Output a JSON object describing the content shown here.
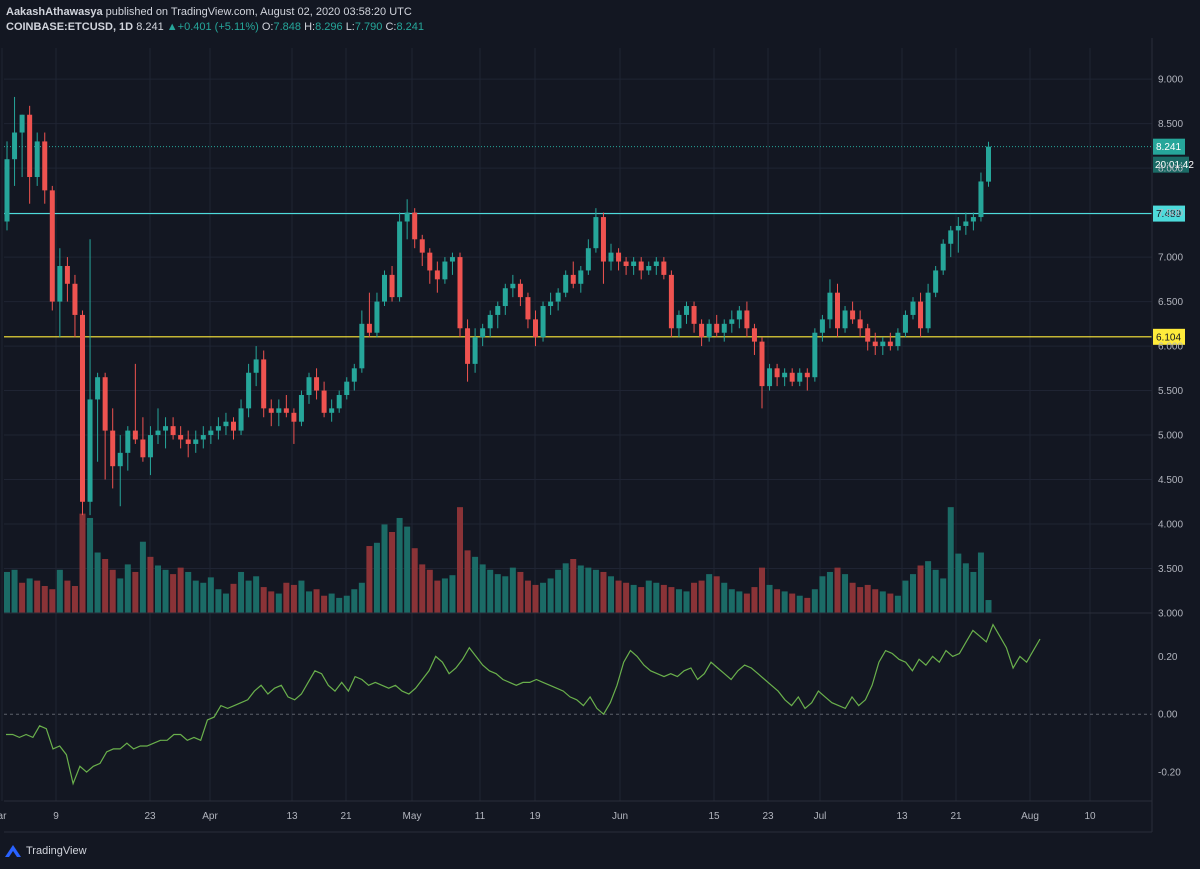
{
  "header": {
    "published_line_author": "AakashAthawasya",
    "published_line_rest": " published on TradingView.com, August 02, 2020 03:58:20 UTC",
    "symbol": "COINBASE:ETCUSD, 1D",
    "last": "8.241",
    "change_arrow": "▲",
    "change": "+0.401 (+5.11%)",
    "o_label": "O:",
    "o_value": "7.848",
    "h_label": "H:",
    "h_value": "8.296",
    "l_label": "L:",
    "l_value": "7.790",
    "c_label": "C:",
    "c_value": "8.241"
  },
  "footer": {
    "brand": "TradingView"
  },
  "colors": {
    "background": "#131722",
    "up": "#26a69a",
    "down": "#ef5350",
    "vol_up": "#1b6b66",
    "vol_down": "#8a3337",
    "grid": "#1f2433",
    "support": "#ffeb3b",
    "resistance": "#4ddbdb",
    "oscillator": "#6ab04c",
    "axis_text": "#b2b5be"
  },
  "chart_data": [
    {
      "type": "candlestick",
      "symbol": "COINBASE:ETCUSD",
      "interval": "1D",
      "y_axis_side": "right",
      "ylim": [
        3.0,
        9.35
      ],
      "yticks": [
        "9.000",
        "8.500",
        "8.000",
        "7.500",
        "7.000",
        "6.500",
        "6.000",
        "5.500",
        "5.000",
        "4.500",
        "4.000",
        "3.500",
        "3.000"
      ],
      "xticks": [
        "ar",
        "9",
        "23",
        "Apr",
        "13",
        "21",
        "May",
        "11",
        "19",
        "Jun",
        "15",
        "23",
        "Jul",
        "13",
        "21",
        "Aug",
        "10"
      ],
      "horizontal_lines": [
        {
          "value": 7.489,
          "label": "7.489",
          "style": "resistance"
        },
        {
          "value": 6.104,
          "label": "6.104",
          "style": "support"
        }
      ],
      "last_price": {
        "value": 8.241,
        "label": "8.241",
        "countdown": "20:01:42"
      },
      "candles_ohlc": [
        [
          7.4,
          8.3,
          7.3,
          8.1
        ],
        [
          8.1,
          8.8,
          7.8,
          8.4
        ],
        [
          8.4,
          8.6,
          7.9,
          8.6
        ],
        [
          8.6,
          8.7,
          7.6,
          7.9
        ],
        [
          7.9,
          8.4,
          7.8,
          8.3
        ],
        [
          8.3,
          8.4,
          7.6,
          7.75
        ],
        [
          7.75,
          7.8,
          6.4,
          6.5
        ],
        [
          6.5,
          7.1,
          6.1,
          6.9
        ],
        [
          6.9,
          7.0,
          6.5,
          6.7
        ],
        [
          6.7,
          6.8,
          6.1,
          6.35
        ],
        [
          6.35,
          6.4,
          4.1,
          4.25
        ],
        [
          4.25,
          7.2,
          4.1,
          5.4
        ],
        [
          5.4,
          5.7,
          4.7,
          5.65
        ],
        [
          5.65,
          5.7,
          4.5,
          5.05
        ],
        [
          5.05,
          5.3,
          4.4,
          4.65
        ],
        [
          4.65,
          5.0,
          4.2,
          4.8
        ],
        [
          4.8,
          5.1,
          4.6,
          5.05
        ],
        [
          5.05,
          5.8,
          4.9,
          4.95
        ],
        [
          4.95,
          5.2,
          4.7,
          4.75
        ],
        [
          4.75,
          5.1,
          4.55,
          5.0
        ],
        [
          5.0,
          5.3,
          4.9,
          5.05
        ],
        [
          5.05,
          5.2,
          4.85,
          5.1
        ],
        [
          5.1,
          5.2,
          4.95,
          5.0
        ],
        [
          5.0,
          5.1,
          4.85,
          4.95
        ],
        [
          4.95,
          5.05,
          4.75,
          4.9
        ],
        [
          4.9,
          5.05,
          4.8,
          4.95
        ],
        [
          4.95,
          5.1,
          4.85,
          5.0
        ],
        [
          5.0,
          5.1,
          4.9,
          5.05
        ],
        [
          5.05,
          5.2,
          4.95,
          5.1
        ],
        [
          5.1,
          5.25,
          5.0,
          5.15
        ],
        [
          5.15,
          5.2,
          4.95,
          5.05
        ],
        [
          5.05,
          5.4,
          5.0,
          5.3
        ],
        [
          5.3,
          5.8,
          5.2,
          5.7
        ],
        [
          5.7,
          6.0,
          5.55,
          5.85
        ],
        [
          5.85,
          5.95,
          5.2,
          5.3
        ],
        [
          5.3,
          5.4,
          5.1,
          5.25
        ],
        [
          5.25,
          5.4,
          5.1,
          5.3
        ],
        [
          5.3,
          5.45,
          5.2,
          5.25
        ],
        [
          5.25,
          5.3,
          4.9,
          5.15
        ],
        [
          5.15,
          5.5,
          5.1,
          5.45
        ],
        [
          5.45,
          5.7,
          5.35,
          5.65
        ],
        [
          5.65,
          5.75,
          5.4,
          5.5
        ],
        [
          5.5,
          5.6,
          5.2,
          5.25
        ],
        [
          5.25,
          5.4,
          5.15,
          5.3
        ],
        [
          5.3,
          5.5,
          5.25,
          5.45
        ],
        [
          5.45,
          5.65,
          5.4,
          5.6
        ],
        [
          5.6,
          5.8,
          5.5,
          5.75
        ],
        [
          5.75,
          6.4,
          5.7,
          6.25
        ],
        [
          6.25,
          6.6,
          6.1,
          6.15
        ],
        [
          6.15,
          6.6,
          6.1,
          6.5
        ],
        [
          6.5,
          6.85,
          6.45,
          6.8
        ],
        [
          6.8,
          6.9,
          6.5,
          6.55
        ],
        [
          6.55,
          7.5,
          6.5,
          7.4
        ],
        [
          7.4,
          7.65,
          7.2,
          7.5
        ],
        [
          7.5,
          7.55,
          7.1,
          7.2
        ],
        [
          7.2,
          7.25,
          6.9,
          7.05
        ],
        [
          7.05,
          7.1,
          6.7,
          6.85
        ],
        [
          6.85,
          6.95,
          6.6,
          6.75
        ],
        [
          6.75,
          7.0,
          6.7,
          6.95
        ],
        [
          6.95,
          7.05,
          6.8,
          7.0
        ],
        [
          7.0,
          7.05,
          6.1,
          6.2
        ],
        [
          6.2,
          6.3,
          5.6,
          5.8
        ],
        [
          5.8,
          6.2,
          5.7,
          6.1
        ],
        [
          6.1,
          6.25,
          6.0,
          6.2
        ],
        [
          6.2,
          6.4,
          6.1,
          6.35
        ],
        [
          6.35,
          6.5,
          6.2,
          6.45
        ],
        [
          6.45,
          6.7,
          6.35,
          6.65
        ],
        [
          6.65,
          6.8,
          6.55,
          6.7
        ],
        [
          6.7,
          6.75,
          6.45,
          6.55
        ],
        [
          6.55,
          6.6,
          6.2,
          6.3
        ],
        [
          6.3,
          6.4,
          6.0,
          6.1
        ],
        [
          6.1,
          6.5,
          6.05,
          6.45
        ],
        [
          6.45,
          6.6,
          6.35,
          6.5
        ],
        [
          6.5,
          6.65,
          6.4,
          6.6
        ],
        [
          6.6,
          6.85,
          6.55,
          6.8
        ],
        [
          6.8,
          6.95,
          6.65,
          6.7
        ],
        [
          6.7,
          6.9,
          6.6,
          6.85
        ],
        [
          6.85,
          7.2,
          6.8,
          7.1
        ],
        [
          7.1,
          7.55,
          7.05,
          7.45
        ],
        [
          7.45,
          7.5,
          6.7,
          6.95
        ],
        [
          6.95,
          7.15,
          6.85,
          7.05
        ],
        [
          7.05,
          7.1,
          6.85,
          6.95
        ],
        [
          6.95,
          7.0,
          6.8,
          6.9
        ],
        [
          6.9,
          7.0,
          6.8,
          6.95
        ],
        [
          6.95,
          7.0,
          6.75,
          6.85
        ],
        [
          6.85,
          6.95,
          6.8,
          6.9
        ],
        [
          6.9,
          7.0,
          6.8,
          6.95
        ],
        [
          6.95,
          7.0,
          6.75,
          6.8
        ],
        [
          6.8,
          6.85,
          6.1,
          6.2
        ],
        [
          6.2,
          6.4,
          6.1,
          6.35
        ],
        [
          6.35,
          6.5,
          6.25,
          6.45
        ],
        [
          6.45,
          6.5,
          6.15,
          6.25
        ],
        [
          6.25,
          6.3,
          6.0,
          6.1
        ],
        [
          6.1,
          6.3,
          6.05,
          6.25
        ],
        [
          6.25,
          6.35,
          6.1,
          6.15
        ],
        [
          6.15,
          6.3,
          6.05,
          6.25
        ],
        [
          6.25,
          6.4,
          6.15,
          6.3
        ],
        [
          6.3,
          6.45,
          6.2,
          6.4
        ],
        [
          6.4,
          6.5,
          6.1,
          6.2
        ],
        [
          6.2,
          6.25,
          5.9,
          6.05
        ],
        [
          6.05,
          6.1,
          5.3,
          5.55
        ],
        [
          5.55,
          5.8,
          5.5,
          5.75
        ],
        [
          5.75,
          5.8,
          5.55,
          5.65
        ],
        [
          5.65,
          5.75,
          5.55,
          5.7
        ],
        [
          5.7,
          5.75,
          5.55,
          5.6
        ],
        [
          5.6,
          5.75,
          5.55,
          5.7
        ],
        [
          5.7,
          5.75,
          5.5,
          5.65
        ],
        [
          5.65,
          6.2,
          5.6,
          6.15
        ],
        [
          6.15,
          6.35,
          6.05,
          6.3
        ],
        [
          6.3,
          6.75,
          6.2,
          6.6
        ],
        [
          6.6,
          6.7,
          6.1,
          6.2
        ],
        [
          6.2,
          6.45,
          6.15,
          6.4
        ],
        [
          6.4,
          6.5,
          6.25,
          6.3
        ],
        [
          6.3,
          6.4,
          6.1,
          6.2
        ],
        [
          6.2,
          6.25,
          5.95,
          6.05
        ],
        [
          6.05,
          6.15,
          5.9,
          6.0
        ],
        [
          6.0,
          6.1,
          5.9,
          6.05
        ],
        [
          6.05,
          6.15,
          5.95,
          6.0
        ],
        [
          6.0,
          6.2,
          5.95,
          6.15
        ],
        [
          6.15,
          6.4,
          6.1,
          6.35
        ],
        [
          6.35,
          6.55,
          6.3,
          6.5
        ],
        [
          6.5,
          6.6,
          6.1,
          6.2
        ],
        [
          6.2,
          6.7,
          6.15,
          6.6
        ],
        [
          6.6,
          6.9,
          6.55,
          6.85
        ],
        [
          6.85,
          7.2,
          6.8,
          7.15
        ],
        [
          7.15,
          7.35,
          7.0,
          7.3
        ],
        [
          7.3,
          7.45,
          7.05,
          7.35
        ],
        [
          7.35,
          7.5,
          7.25,
          7.4
        ],
        [
          7.4,
          7.5,
          7.3,
          7.45
        ],
        [
          7.45,
          7.95,
          7.4,
          7.85
        ],
        [
          7.848,
          8.296,
          7.79,
          8.241
        ]
      ],
      "volume_ylim": [
        0,
        100
      ],
      "volume": [
        38,
        40,
        28,
        32,
        30,
        25,
        22,
        40,
        30,
        25,
        92,
        88,
        56,
        50,
        40,
        32,
        45,
        38,
        66,
        52,
        44,
        40,
        36,
        42,
        38,
        30,
        28,
        33,
        22,
        18,
        27,
        38,
        30,
        34,
        24,
        20,
        18,
        28,
        26,
        30,
        20,
        22,
        16,
        18,
        14,
        16,
        22,
        28,
        62,
        65,
        82,
        75,
        88,
        80,
        60,
        45,
        40,
        30,
        32,
        35,
        98,
        58,
        52,
        45,
        40,
        36,
        34,
        42,
        38,
        30,
        26,
        28,
        32,
        40,
        46,
        50,
        44,
        42,
        40,
        38,
        34,
        30,
        28,
        26,
        24,
        30,
        28,
        26,
        24,
        22,
        20,
        28,
        30,
        36,
        34,
        28,
        22,
        20,
        18,
        24,
        42,
        26,
        22,
        20,
        18,
        16,
        14,
        22,
        34,
        38,
        42,
        36,
        28,
        24,
        26,
        22,
        20,
        18,
        16,
        30,
        36,
        44,
        48,
        40,
        32,
        98,
        55,
        46,
        38,
        56,
        12
      ],
      "volume_direction": [
        "u",
        "u",
        "d",
        "u",
        "d",
        "d",
        "d",
        "u",
        "d",
        "d",
        "d",
        "u",
        "u",
        "d",
        "d",
        "u",
        "u",
        "d",
        "u",
        "d",
        "u",
        "u",
        "d",
        "d",
        "u",
        "u",
        "u",
        "u",
        "u",
        "u",
        "d",
        "u",
        "u",
        "u",
        "d",
        "d",
        "u",
        "d",
        "d",
        "u",
        "u",
        "d",
        "d",
        "u",
        "u",
        "u",
        "u",
        "u",
        "d",
        "u",
        "u",
        "d",
        "u",
        "u",
        "d",
        "d",
        "d",
        "d",
        "u",
        "u",
        "d",
        "d",
        "u",
        "u",
        "u",
        "u",
        "u",
        "u",
        "d",
        "d",
        "d",
        "u",
        "u",
        "u",
        "u",
        "d",
        "u",
        "u",
        "u",
        "d",
        "u",
        "d",
        "d",
        "u",
        "d",
        "u",
        "u",
        "d",
        "d",
        "u",
        "u",
        "d",
        "d",
        "u",
        "d",
        "u",
        "u",
        "u",
        "d",
        "d",
        "d",
        "u",
        "d",
        "u",
        "d",
        "u",
        "d",
        "u",
        "u",
        "u",
        "d",
        "u",
        "d",
        "d",
        "d",
        "d",
        "u",
        "d",
        "u",
        "u",
        "u",
        "d",
        "u",
        "u",
        "u",
        "u",
        "u",
        "u",
        "u",
        "u",
        "u"
      ]
    },
    {
      "type": "line",
      "name": "oscillator",
      "ylim": [
        -0.3,
        0.35
      ],
      "yticks": [
        "0.20",
        "0.00",
        "-0.20"
      ],
      "zero_line": true,
      "values": [
        -0.07,
        -0.07,
        -0.08,
        -0.07,
        -0.08,
        -0.04,
        -0.05,
        -0.12,
        -0.11,
        -0.14,
        -0.24,
        -0.18,
        -0.2,
        -0.18,
        -0.17,
        -0.13,
        -0.12,
        -0.12,
        -0.1,
        -0.12,
        -0.11,
        -0.11,
        -0.1,
        -0.09,
        -0.09,
        -0.07,
        -0.07,
        -0.09,
        -0.08,
        -0.09,
        -0.02,
        -0.01,
        0.03,
        0.02,
        0.03,
        0.04,
        0.05,
        0.08,
        0.1,
        0.07,
        0.09,
        0.1,
        0.06,
        0.05,
        0.07,
        0.11,
        0.15,
        0.14,
        0.1,
        0.08,
        0.11,
        0.08,
        0.13,
        0.12,
        0.1,
        0.11,
        0.1,
        0.09,
        0.1,
        0.08,
        0.07,
        0.09,
        0.12,
        0.15,
        0.2,
        0.18,
        0.14,
        0.16,
        0.19,
        0.23,
        0.2,
        0.17,
        0.15,
        0.14,
        0.12,
        0.11,
        0.1,
        0.11,
        0.11,
        0.12,
        0.11,
        0.1,
        0.09,
        0.08,
        0.06,
        0.05,
        0.03,
        0.06,
        0.02,
        0.0,
        0.04,
        0.1,
        0.18,
        0.22,
        0.2,
        0.17,
        0.15,
        0.14,
        0.13,
        0.14,
        0.13,
        0.15,
        0.16,
        0.12,
        0.14,
        0.18,
        0.16,
        0.14,
        0.12,
        0.15,
        0.17,
        0.16,
        0.14,
        0.12,
        0.1,
        0.08,
        0.05,
        0.03,
        0.06,
        0.02,
        0.04,
        0.08,
        0.06,
        0.04,
        0.03,
        0.02,
        0.06,
        0.03,
        0.05,
        0.1,
        0.18,
        0.22,
        0.21,
        0.19,
        0.18,
        0.15,
        0.19,
        0.17,
        0.2,
        0.18,
        0.22,
        0.2,
        0.21,
        0.25,
        0.29,
        0.27,
        0.25,
        0.31,
        0.27,
        0.23,
        0.16,
        0.2,
        0.18,
        0.22,
        0.26
      ]
    }
  ]
}
